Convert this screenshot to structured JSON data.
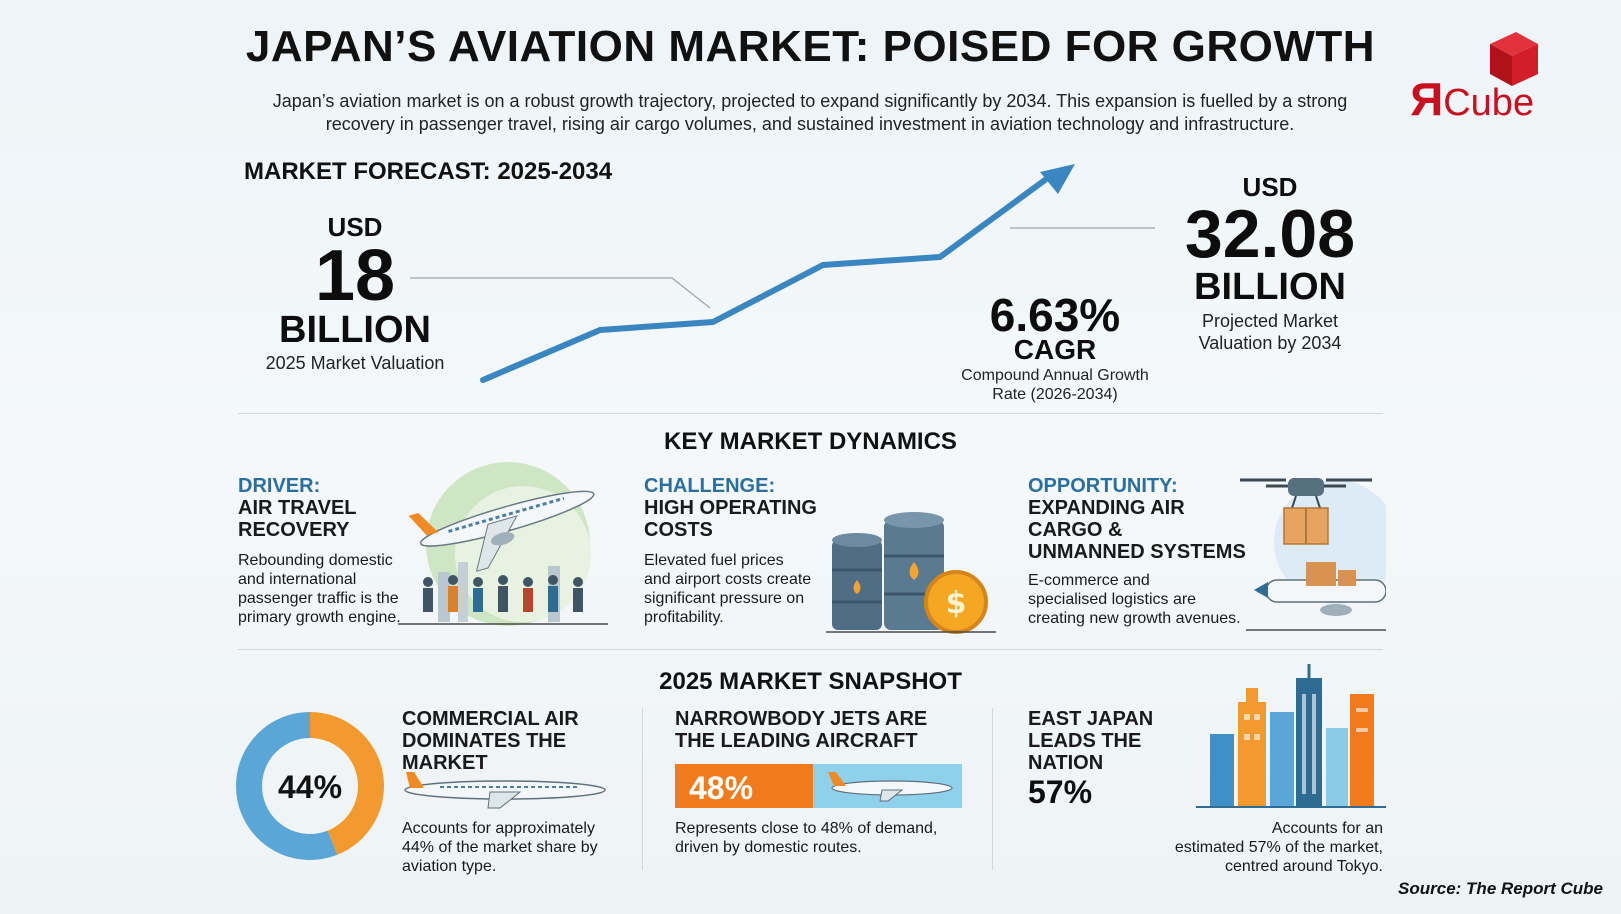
{
  "header": {
    "title": "JAPAN’S AVIATION MARKET: POISED FOR GROWTH",
    "subtitle": "Japan’s aviation market is on a robust growth trajectory, projected to expand significantly by 2034. This expansion is fuelled by a strong recovery in passenger travel, rising air cargo volumes, and sustained investment in aviation technology and infrastructure."
  },
  "logo": {
    "mark": "R",
    "text": "Cube",
    "brand_color": "#c8101e"
  },
  "forecast": {
    "heading": "MARKET FORECAST: 2025-2034",
    "start": {
      "currency": "USD",
      "value": "18",
      "unit": "BILLION",
      "caption": "2025 Market Valuation"
    },
    "cagr": {
      "value": "6.63%",
      "label": "CAGR",
      "caption_line1": "Compound Annual Growth",
      "caption_line2": "Rate (2026-2034)"
    },
    "end": {
      "currency": "USD",
      "value": "32.08",
      "unit": "BILLION",
      "caption_line1": "Projected Market",
      "caption_line2": "Valuation by 2034"
    },
    "line_color": "#3a86c0"
  },
  "dynamics": {
    "heading": "KEY MARKET DYNAMICS",
    "driver": {
      "tag": "DRIVER:",
      "line1": "AIR TRAVEL",
      "line2": "RECOVERY",
      "body1": "Rebounding domestic",
      "body2": "and international",
      "body3": "passenger traffic is the",
      "body4": "primary growth engine.",
      "icon": "airplane-passengers-icon"
    },
    "challenge": {
      "tag": "CHALLENGE:",
      "line1": "HIGH OPERATING",
      "line2": "COSTS",
      "body1": "Elevated fuel prices",
      "body2": "and airport costs create",
      "body3": "significant pressure on",
      "body4": "profitability.",
      "icon": "fuel-barrels-coin-icon"
    },
    "opportunity": {
      "tag": "OPPORTUNITY:",
      "line1": "EXPANDING AIR",
      "line2": "CARGO &",
      "line3": "UNMANNED SYSTEMS",
      "body1": "E-commerce and",
      "body2": "specialised logistics are",
      "body3": "creating new growth avenues.",
      "icon": "drone-cargo-plane-icon"
    }
  },
  "snapshot": {
    "heading": "2025 MARKET SNAPSHOT",
    "commercial": {
      "percent_label": "44%",
      "share": 0.44,
      "line1": "COMMERCIAL AIR",
      "line2": "DOMINATES THE",
      "line3": "MARKET",
      "body1": "Accounts for approximately",
      "body2": "44% of the market share by",
      "body3": "aviation type.",
      "colors": {
        "share": "#f39a2e",
        "rest": "#5aa6d6"
      }
    },
    "narrowbody": {
      "percent_label": "48%",
      "share": 0.48,
      "line1": "NARROWBODY JETS ARE",
      "line2": "THE LEADING AIRCRAFT",
      "body1": "Represents close to 48% of demand,",
      "body2": "driven by domestic routes.",
      "colors": {
        "bar": "#f07a1e",
        "rest": "#8fd0ea"
      }
    },
    "east": {
      "line1": "EAST JAPAN",
      "line2": "LEADS THE",
      "line3": "NATION",
      "percent_label": "57%",
      "body1": "Accounts for an",
      "body2": "estimated 57% of the market,",
      "body3": "centred around Tokyo.",
      "icon": "city-skyline-icon"
    }
  },
  "source": "Source: The Report Cube"
}
